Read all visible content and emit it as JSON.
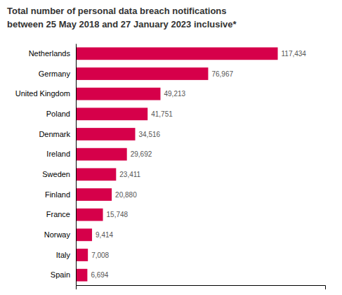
{
  "chart_data": {
    "type": "bar",
    "orientation": "horizontal",
    "title": "Total number of personal data breach notifications",
    "subtitle": "between 25 May 2018 and 27 January 2023 inclusive*",
    "categories": [
      "Netherlands",
      "Germany",
      "United Kingdom",
      "Poland",
      "Denmark",
      "Ireland",
      "Sweden",
      "Finland",
      "France",
      "Norway",
      "Italy",
      "Spain"
    ],
    "values": [
      117434,
      76967,
      49213,
      41751,
      34516,
      29692,
      23411,
      20880,
      15748,
      9414,
      7008,
      6694
    ],
    "value_labels": [
      "117,434",
      "76,967",
      "49,213",
      "41,751",
      "34,516",
      "29,692",
      "23,411",
      "20,880",
      "15,748",
      "9,414",
      "7,008",
      "6,694"
    ],
    "data_labels": true,
    "color": "#D6004A",
    "xlim": [
      0,
      145000
    ],
    "tick_labels": "y",
    "grid": false
  }
}
